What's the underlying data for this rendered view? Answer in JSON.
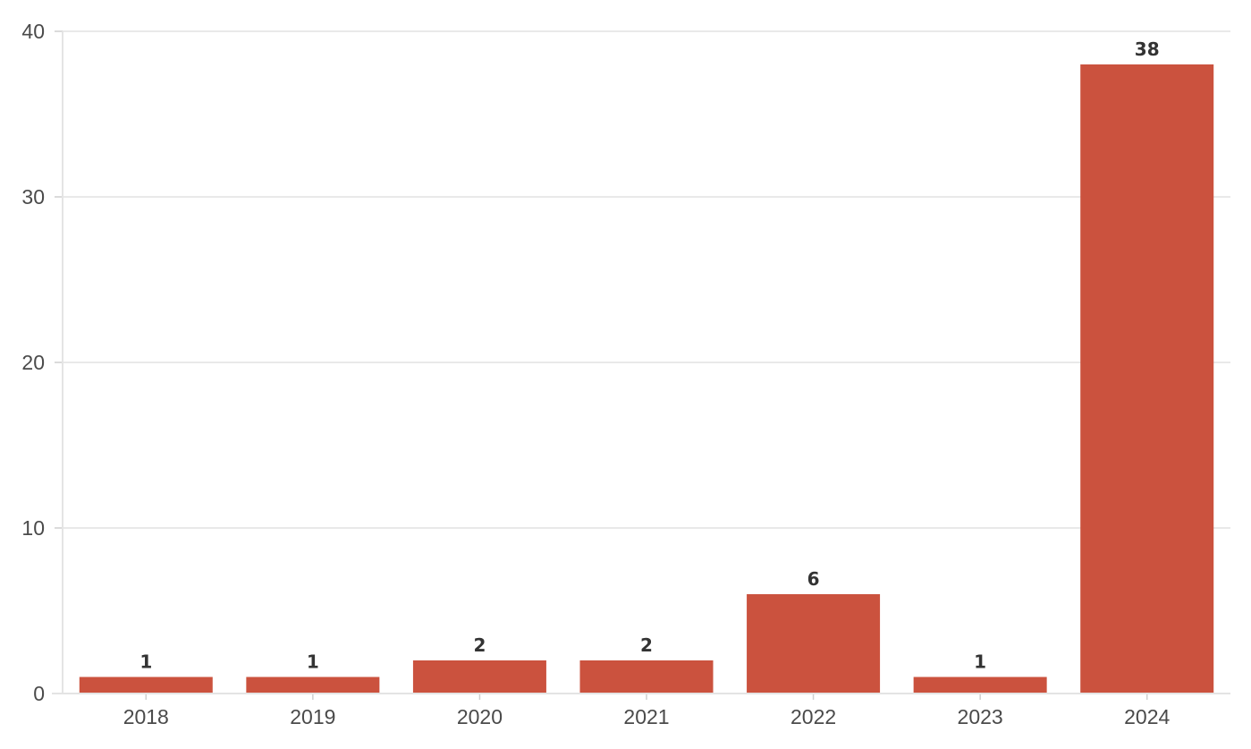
{
  "chart_data": {
    "type": "bar",
    "title": "",
    "xlabel": "",
    "ylabel": "",
    "categories": [
      "2018",
      "2019",
      "2020",
      "2021",
      "2022",
      "2023",
      "2024"
    ],
    "values": [
      1,
      1,
      2,
      2,
      6,
      1,
      38
    ],
    "value_labels": [
      "1",
      "1",
      "2",
      "2",
      "6",
      "1",
      "38"
    ],
    "ylim": [
      0,
      40
    ],
    "yticks": [
      0,
      10,
      20,
      30,
      40
    ],
    "ytick_labels": [
      "0",
      "10",
      "20",
      "30",
      "40"
    ],
    "grid": true,
    "bar_color": "#cb523e"
  }
}
